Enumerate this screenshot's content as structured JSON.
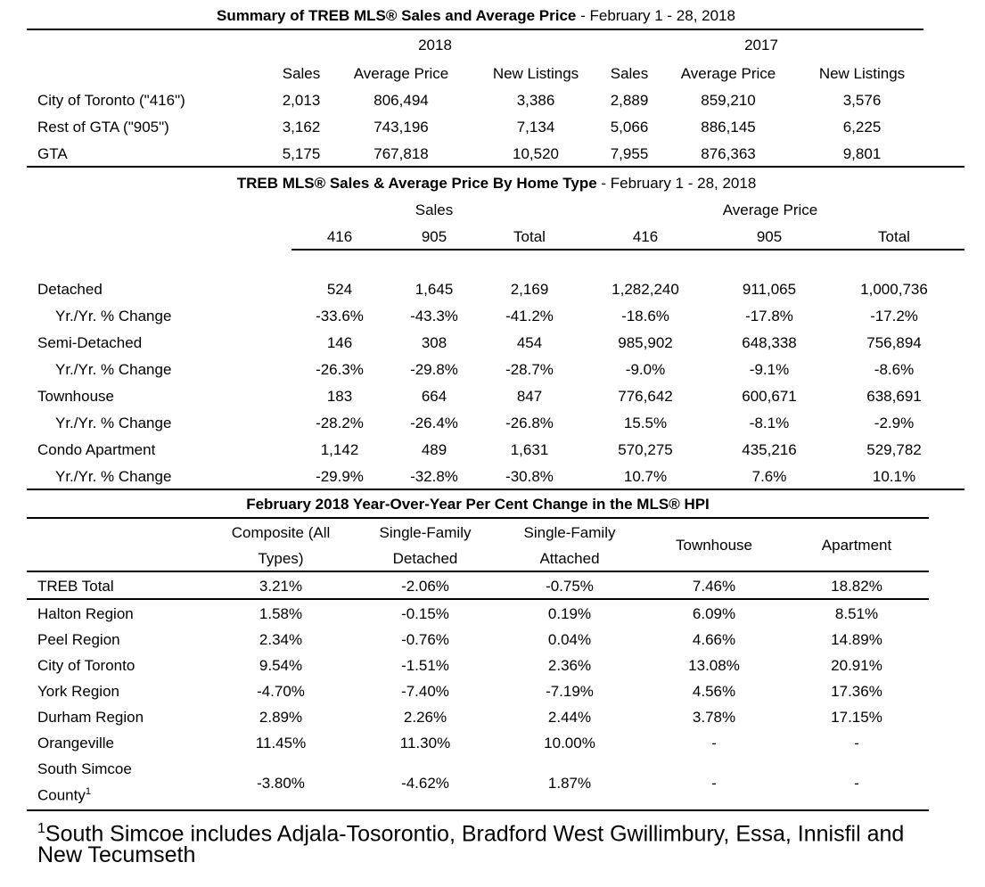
{
  "summary": {
    "title_bold": "Summary of TREB MLS®  Sales and Average Price",
    "title_rest": " - February 1 - 28, 2018",
    "year_2018": "2018",
    "year_2017": "2017",
    "col_headers": [
      "Sales",
      "Average Price",
      "New Listings",
      "Sales",
      "Average Price",
      "New Listings"
    ],
    "rows": [
      {
        "label": "City of Toronto (\"416\")",
        "values": [
          "2,013",
          "806,494",
          "3,386",
          "2,889",
          "859,210",
          "3,576"
        ]
      },
      {
        "label": "Rest of GTA (\"905\")",
        "values": [
          "3,162",
          "743,196",
          "7,134",
          "5,066",
          "886,145",
          "6,225"
        ]
      },
      {
        "label": "GTA",
        "values": [
          "5,175",
          "767,818",
          "10,520",
          "7,955",
          "876,363",
          "9,801"
        ]
      }
    ]
  },
  "home_type": {
    "title_bold": "TREB MLS® Sales & Average Price  By Home Type",
    "title_rest": " - February 1 - 28, 2018",
    "group_sales": "Sales",
    "group_avg": "Average Price",
    "col_headers": [
      "416",
      "905",
      "Total",
      "416",
      "905",
      "Total"
    ],
    "rows": [
      {
        "label": "Detached",
        "values": [
          "524",
          "1,645",
          "2,169",
          "1,282,240",
          "911,065",
          "1,000,736"
        ]
      },
      {
        "label": "Yr./Yr. % Change",
        "values": [
          "-33.6%",
          "-43.3%",
          "-41.2%",
          "-18.6%",
          "-17.8%",
          "-17.2%"
        ]
      },
      {
        "label": "Semi-Detached",
        "values": [
          "146",
          "308",
          "454",
          "985,902",
          "648,338",
          "756,894"
        ]
      },
      {
        "label": "Yr./Yr. % Change",
        "values": [
          "-26.3%",
          "-29.8%",
          "-28.7%",
          "-9.0%",
          "-9.1%",
          "-8.6%"
        ]
      },
      {
        "label": "Townhouse",
        "values": [
          "183",
          "664",
          "847",
          "776,642",
          "600,671",
          "638,691"
        ]
      },
      {
        "label": "Yr./Yr. % Change",
        "values": [
          "-28.2%",
          "-26.4%",
          "-26.8%",
          "15.5%",
          "-8.1%",
          "-2.9%"
        ]
      },
      {
        "label": "Condo Apartment",
        "values": [
          "1,142",
          "489",
          "1,631",
          "570,275",
          "435,216",
          "529,782"
        ]
      },
      {
        "label": "Yr./Yr. % Change",
        "values": [
          "-29.9%",
          "-32.8%",
          "-30.8%",
          "10.7%",
          "7.6%",
          "10.1%"
        ]
      }
    ]
  },
  "hpi": {
    "title": "February 2018 Year-Over-Year Per Cent Change in the MLS® HPI",
    "col_headers": [
      {
        "l1": "Composite (All",
        "l2": "Types)"
      },
      {
        "l1": "Single-Family",
        "l2": "Detached"
      },
      {
        "l1": "Single-Family",
        "l2": "Attached"
      },
      {
        "l1": "Townhouse",
        "l2": ""
      },
      {
        "l1": "Apartment",
        "l2": ""
      }
    ],
    "total_row": {
      "label": "TREB Total",
      "values": [
        "3.21%",
        "-2.06%",
        "-0.75%",
        "7.46%",
        "18.82%"
      ]
    },
    "rows": [
      {
        "label": "Halton Region",
        "values": [
          "1.58%",
          "-0.15%",
          "0.19%",
          "6.09%",
          "8.51%"
        ]
      },
      {
        "label": "Peel Region",
        "values": [
          "2.34%",
          "-0.76%",
          "0.04%",
          "4.66%",
          "14.89%"
        ]
      },
      {
        "label": "City of Toronto",
        "values": [
          "9.54%",
          "-1.51%",
          "2.36%",
          "13.08%",
          "20.91%"
        ]
      },
      {
        "label": "York Region",
        "values": [
          "-4.70%",
          "-7.40%",
          "-7.19%",
          "4.56%",
          "17.36%"
        ]
      },
      {
        "label": "Durham Region",
        "values": [
          "2.89%",
          "2.26%",
          "2.44%",
          "3.78%",
          "17.15%"
        ]
      },
      {
        "label": "Orangeville",
        "values": [
          "11.45%",
          "11.30%",
          "10.00%",
          "-",
          "-"
        ]
      }
    ],
    "last_row": {
      "label_l1": "South Simcoe",
      "label_l2": "County",
      "sup": "1",
      "values": [
        "-3.80%",
        "-4.62%",
        "1.87%",
        "-",
        "-"
      ]
    }
  },
  "footnote": {
    "sup": "1",
    "line1": "South Simcoe includes Adjala-Tosorontio, Bradford West Gwillimbury, Essa, Innisfil and",
    "line2": "New Tecumseth"
  }
}
